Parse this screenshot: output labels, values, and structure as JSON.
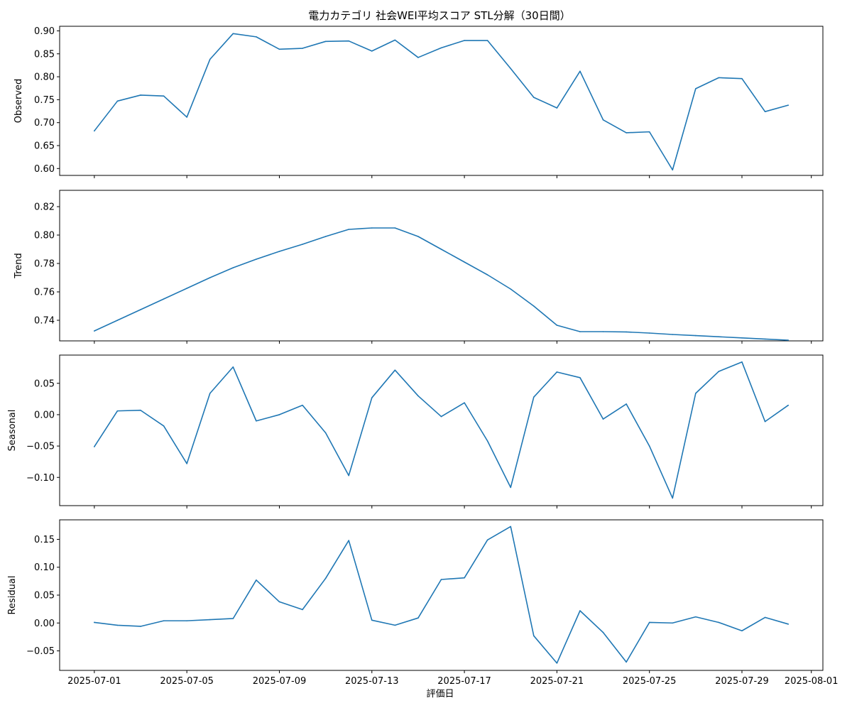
{
  "chart_data": {
    "type": "line",
    "title": "電力カテゴリ 社会WEI平均スコア STL分解（30日間）",
    "xlabel": "評価日",
    "x": [
      "2025-07-01",
      "2025-07-02",
      "2025-07-03",
      "2025-07-04",
      "2025-07-05",
      "2025-07-06",
      "2025-07-07",
      "2025-07-08",
      "2025-07-09",
      "2025-07-10",
      "2025-07-11",
      "2025-07-12",
      "2025-07-13",
      "2025-07-14",
      "2025-07-15",
      "2025-07-16",
      "2025-07-17",
      "2025-07-18",
      "2025-07-19",
      "2025-07-20",
      "2025-07-21",
      "2025-07-22",
      "2025-07-23",
      "2025-07-24",
      "2025-07-25",
      "2025-07-26",
      "2025-07-27",
      "2025-07-28",
      "2025-07-29",
      "2025-07-30",
      "2025-07-31"
    ],
    "x_tick_labels": [
      "2025-07-01",
      "2025-07-05",
      "2025-07-09",
      "2025-07-13",
      "2025-07-17",
      "2025-07-21",
      "2025-07-25",
      "2025-07-29",
      "2025-08-01"
    ],
    "xlim": [
      "2025-06-29.5",
      "2025-08-01.5"
    ],
    "line_color": "#1f77b4",
    "grid": false,
    "panels": [
      {
        "ylabel": "Observed",
        "ylim": [
          0.585,
          0.91
        ],
        "yticks": [
          0.6,
          0.65,
          0.7,
          0.75,
          0.8,
          0.85,
          0.9
        ],
        "ytick_labels": [
          "0.60",
          "0.65",
          "0.70",
          "0.75",
          "0.80",
          "0.85",
          "0.90"
        ],
        "values": [
          0.682,
          0.747,
          0.76,
          0.758,
          0.712,
          0.838,
          0.894,
          0.887,
          0.86,
          0.862,
          0.877,
          0.878,
          0.856,
          0.88,
          0.842,
          0.863,
          0.879,
          0.879,
          0.818,
          0.755,
          0.732,
          0.812,
          0.706,
          0.678,
          0.68,
          0.597,
          0.774,
          0.798,
          0.796,
          0.724,
          0.738
        ]
      },
      {
        "ylabel": "Trend",
        "ylim": [
          0.7255,
          0.8315
        ],
        "yticks": [
          0.74,
          0.76,
          0.78,
          0.8,
          0.82
        ],
        "ytick_labels": [
          "0.74",
          "0.76",
          "0.78",
          "0.80",
          "0.82"
        ],
        "values": [
          0.7325,
          0.74,
          0.7475,
          0.755,
          0.7625,
          0.77,
          0.777,
          0.783,
          0.7885,
          0.7935,
          0.799,
          0.804,
          0.805,
          0.805,
          0.799,
          0.79,
          0.781,
          0.772,
          0.762,
          0.75,
          0.7365,
          0.732,
          0.732,
          0.7318,
          0.731,
          0.73,
          0.7292,
          0.7284,
          0.7276,
          0.7268,
          0.726
        ]
      },
      {
        "ylabel": "Seasonal",
        "ylim": [
          -0.145,
          0.095
        ],
        "yticks": [
          -0.1,
          -0.05,
          0.0,
          0.05
        ],
        "ytick_labels": [
          "−0.10",
          "−0.05",
          "0.00",
          "0.05"
        ],
        "values": [
          -0.051,
          0.006,
          0.007,
          -0.018,
          -0.078,
          0.034,
          0.076,
          -0.01,
          0.0,
          0.015,
          -0.029,
          -0.097,
          0.027,
          0.071,
          0.03,
          -0.003,
          0.019,
          -0.042,
          -0.116,
          0.028,
          0.068,
          0.059,
          -0.007,
          0.017,
          -0.05,
          -0.133,
          0.034,
          0.069,
          0.084,
          -0.011,
          0.015
        ]
      },
      {
        "ylabel": "Residual",
        "ylim": [
          -0.085,
          0.185
        ],
        "yticks": [
          -0.05,
          0.0,
          0.05,
          0.1,
          0.15
        ],
        "ytick_labels": [
          "−0.05",
          "0.00",
          "0.05",
          "0.10",
          "0.15"
        ],
        "values": [
          0.001,
          -0.004,
          -0.006,
          0.004,
          0.004,
          0.006,
          0.008,
          0.077,
          0.038,
          0.024,
          0.08,
          0.148,
          0.005,
          -0.004,
          0.009,
          0.078,
          0.081,
          0.149,
          0.173,
          -0.023,
          -0.072,
          0.022,
          -0.017,
          -0.07,
          0.001,
          0.0,
          0.011,
          0.001,
          -0.014,
          0.01,
          -0.002
        ]
      }
    ]
  }
}
